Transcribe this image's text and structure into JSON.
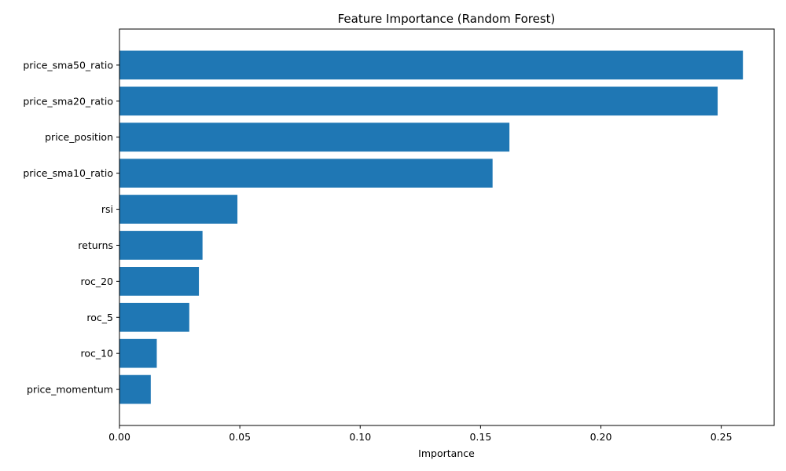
{
  "chart_data": {
    "type": "bar",
    "orientation": "horizontal",
    "title": "Feature Importance (Random Forest)",
    "xlabel": "Importance",
    "ylabel": "",
    "categories": [
      "price_sma50_ratio",
      "price_sma20_ratio",
      "price_position",
      "price_sma10_ratio",
      "rsi",
      "returns",
      "roc_20",
      "roc_5",
      "roc_10",
      "price_momentum"
    ],
    "values": [
      0.259,
      0.2485,
      0.162,
      0.155,
      0.049,
      0.0345,
      0.033,
      0.029,
      0.0155,
      0.013
    ],
    "xlim": [
      0,
      0.272
    ],
    "xticks": [
      0.0,
      0.05,
      0.1,
      0.15,
      0.2,
      0.25
    ],
    "xtick_labels": [
      "0.00",
      "0.05",
      "0.10",
      "0.15",
      "0.20",
      "0.25"
    ],
    "grid": false,
    "legend": "none",
    "bar_color": "#1f77b4"
  }
}
